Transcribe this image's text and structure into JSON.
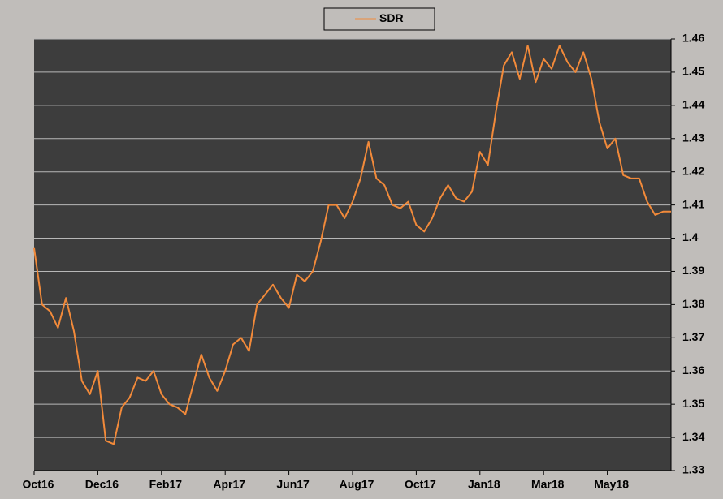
{
  "chart_data": {
    "type": "line",
    "categories": [
      "Oct16",
      null,
      null,
      null,
      null,
      null,
      null,
      null,
      "Dec16",
      null,
      null,
      null,
      null,
      null,
      null,
      null,
      "Feb17",
      null,
      null,
      null,
      null,
      null,
      null,
      null,
      "Apr17",
      null,
      null,
      null,
      null,
      null,
      null,
      null,
      "Jun17",
      null,
      null,
      null,
      null,
      null,
      null,
      null,
      "Aug17",
      null,
      null,
      null,
      null,
      null,
      null,
      null,
      "Oct17",
      null,
      null,
      null,
      null,
      null,
      null,
      null,
      "Jan18",
      null,
      null,
      null,
      null,
      null,
      null,
      null,
      "Mar18",
      null,
      null,
      null,
      null,
      null,
      null,
      null,
      "May18",
      null,
      null,
      null,
      null,
      null,
      null,
      null,
      null
    ],
    "series": [
      {
        "name": "SDR",
        "color": "#f28a3a",
        "values": [
          1.397,
          1.38,
          1.378,
          1.373,
          1.382,
          1.372,
          1.357,
          1.353,
          1.36,
          1.339,
          1.338,
          1.349,
          1.352,
          1.358,
          1.357,
          1.36,
          1.353,
          1.35,
          1.349,
          1.347,
          1.356,
          1.365,
          1.358,
          1.354,
          1.36,
          1.368,
          1.37,
          1.366,
          1.38,
          1.383,
          1.386,
          1.382,
          1.379,
          1.389,
          1.387,
          1.39,
          1.399,
          1.41,
          1.41,
          1.406,
          1.411,
          1.418,
          1.429,
          1.418,
          1.416,
          1.41,
          1.409,
          1.411,
          1.404,
          1.402,
          1.406,
          1.412,
          1.416,
          1.412,
          1.411,
          1.414,
          1.426,
          1.422,
          1.438,
          1.452,
          1.456,
          1.448,
          1.458,
          1.447,
          1.454,
          1.451,
          1.458,
          1.453,
          1.45,
          1.456,
          1.448,
          1.435,
          1.427,
          1.43,
          1.419,
          1.418,
          1.418,
          1.411,
          1.407,
          1.408,
          1.408
        ]
      }
    ],
    "ylim": [
      1.33,
      1.46
    ],
    "yticks": [
      1.33,
      1.34,
      1.35,
      1.36,
      1.37,
      1.38,
      1.39,
      1.4,
      1.41,
      1.42,
      1.43,
      1.44,
      1.45,
      1.46
    ],
    "grid": true,
    "legend": "top"
  }
}
